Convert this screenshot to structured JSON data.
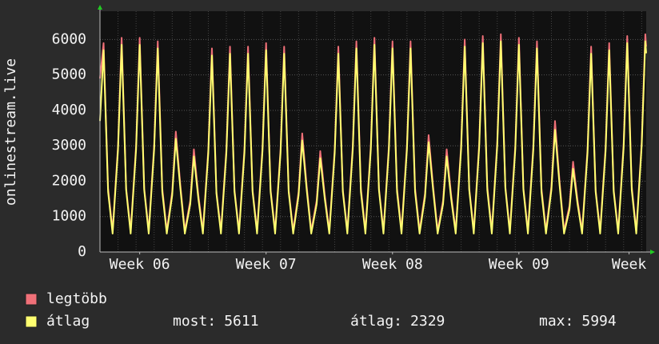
{
  "chart_data": {
    "type": "line",
    "ylabel": "onlinestream.live",
    "x": [
      0,
      0.2,
      0.45,
      0.7,
      1,
      1.2,
      1.45,
      1.7,
      2,
      2.2,
      2.45,
      2.7,
      3,
      3.2,
      3.45,
      3.7,
      4,
      4.2,
      4.45,
      4.7,
      5,
      5.2,
      5.45,
      5.7,
      6,
      6.2,
      6.45,
      6.7,
      7,
      7.2,
      7.45,
      7.7,
      8,
      8.2,
      8.45,
      8.7,
      9,
      9.2,
      9.45,
      9.7,
      10,
      10.2,
      10.45,
      10.7,
      11,
      11.2,
      11.45,
      11.7,
      12,
      12.2,
      12.45,
      12.7,
      13,
      13.2,
      13.45,
      13.7,
      14,
      14.2,
      14.45,
      14.7,
      15,
      15.2,
      15.45,
      15.7,
      16,
      16.2,
      16.45,
      16.7,
      17,
      17.2,
      17.45,
      17.7,
      18,
      18.2,
      18.45,
      18.7,
      19,
      19.2,
      19.45,
      19.7,
      20,
      20.2,
      20.45,
      20.7,
      21,
      21.2,
      21.45,
      21.7,
      22,
      22.2,
      22.45,
      22.7,
      23,
      23.2,
      23.45,
      23.7,
      24,
      24.2,
      24.45,
      24.7,
      25,
      25.2,
      25.45,
      25.7,
      26,
      26.2,
      26.45,
      26.7,
      27,
      27.2,
      27.45,
      27.7,
      28,
      28.2,
      28.45,
      28.7,
      29,
      29.2,
      29.45,
      29.7,
      30,
      30.2,
      30.25
    ],
    "series": [
      {
        "name": "legtöbb",
        "color": "#f07078",
        "values": [
          4900,
          5900,
          1800,
          600,
          3000,
          6050,
          1800,
          600,
          3000,
          6050,
          1800,
          600,
          3000,
          5950,
          1800,
          600,
          1700,
          3400,
          1900,
          600,
          1450,
          2900,
          1600,
          600,
          2900,
          5750,
          1700,
          600,
          2900,
          5800,
          1750,
          600,
          2900,
          5800,
          1750,
          600,
          2950,
          5900,
          1750,
          600,
          2900,
          5800,
          1750,
          600,
          1700,
          3350,
          1850,
          600,
          1450,
          2850,
          1600,
          600,
          2900,
          5800,
          1750,
          600,
          3000,
          5950,
          1800,
          600,
          3000,
          6050,
          1800,
          600,
          3000,
          5950,
          1800,
          600,
          3000,
          5950,
          1800,
          600,
          1650,
          3300,
          1850,
          600,
          1450,
          2900,
          1600,
          600,
          3000,
          6000,
          1800,
          600,
          3050,
          6100,
          1850,
          600,
          3100,
          6150,
          1850,
          600,
          3000,
          6050,
          1800,
          600,
          3000,
          5950,
          1800,
          600,
          1850,
          3700,
          2000,
          600,
          1300,
          2550,
          1450,
          600,
          2900,
          5800,
          1750,
          600,
          2950,
          5900,
          1750,
          600,
          3050,
          6100,
          1850,
          600,
          3100,
          6150,
          5800
        ]
      },
      {
        "name": "átlag",
        "color": "#ffff70",
        "values": [
          3700,
          5700,
          1700,
          520,
          2900,
          5850,
          1750,
          520,
          2900,
          5850,
          1750,
          520,
          2900,
          5750,
          1700,
          520,
          1600,
          3200,
          1800,
          520,
          1350,
          2700,
          1500,
          520,
          2800,
          5550,
          1650,
          520,
          2800,
          5600,
          1700,
          520,
          2800,
          5600,
          1700,
          520,
          2850,
          5700,
          1700,
          520,
          2800,
          5600,
          1700,
          520,
          1600,
          3150,
          1750,
          520,
          1350,
          2650,
          1500,
          520,
          2800,
          5600,
          1700,
          520,
          2900,
          5750,
          1700,
          520,
          2900,
          5850,
          1750,
          520,
          2900,
          5750,
          1700,
          520,
          2900,
          5750,
          1700,
          520,
          1550,
          3100,
          1750,
          520,
          1350,
          2700,
          1500,
          520,
          2900,
          5800,
          1750,
          520,
          2950,
          5900,
          1750,
          520,
          3000,
          5950,
          1800,
          520,
          2900,
          5850,
          1750,
          520,
          2900,
          5750,
          1700,
          520,
          1750,
          3450,
          1900,
          520,
          1200,
          2350,
          1350,
          520,
          2800,
          5600,
          1700,
          520,
          2850,
          5700,
          1700,
          520,
          2950,
          5900,
          1750,
          520,
          3000,
          5950,
          5611
        ]
      }
    ],
    "xlim": [
      0,
      30.25
    ],
    "xticks": [
      {
        "value": 2.2,
        "label": "Week 06"
      },
      {
        "value": 9.2,
        "label": "Week 07"
      },
      {
        "value": 16.2,
        "label": "Week 08"
      },
      {
        "value": 23.2,
        "label": "Week 09"
      },
      {
        "value": 29.3,
        "label": "Week"
      }
    ],
    "ylim": [
      0,
      6800
    ],
    "yticks": [
      0,
      1000,
      2000,
      3000,
      4000,
      5000,
      6000
    ],
    "grid": true,
    "stats": [
      {
        "label": "most:",
        "value": 5611
      },
      {
        "label": "átlag:",
        "value": 2329
      },
      {
        "label": "max:",
        "value": 5994
      }
    ]
  }
}
